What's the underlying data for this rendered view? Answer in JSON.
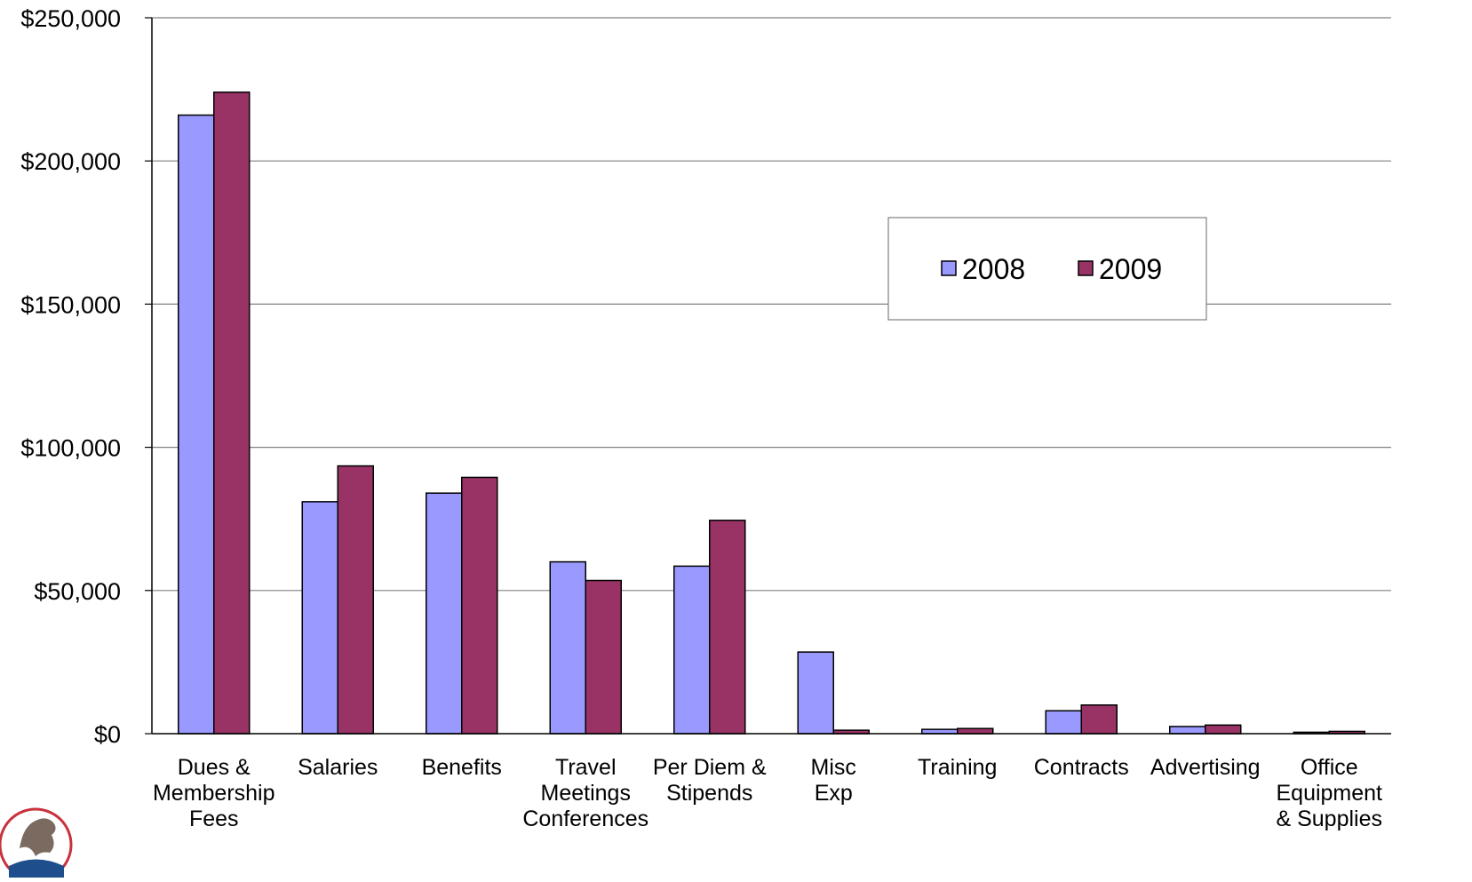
{
  "chart_data": {
    "type": "bar",
    "title": "",
    "xlabel": "",
    "ylabel": "",
    "ylim": [
      0,
      250000
    ],
    "y_ticks": [
      0,
      50000,
      100000,
      150000,
      200000,
      250000
    ],
    "y_tick_labels": [
      "$0",
      "$50,000",
      "$100,000",
      "$150,000",
      "$200,000",
      "$250,000"
    ],
    "grid": true,
    "legend_position": "upper-right",
    "categories": [
      [
        "Dues &",
        "Membership",
        "Fees"
      ],
      [
        "Salaries"
      ],
      [
        "Benefits"
      ],
      [
        "Travel",
        "Meetings",
        "Conferences"
      ],
      [
        "Per Diem &",
        "Stipends"
      ],
      [
        "Misc",
        "Exp"
      ],
      [
        "Training"
      ],
      [
        "Contracts"
      ],
      [
        "Advertising"
      ],
      [
        "Office",
        "Equipment",
        "& Supplies"
      ]
    ],
    "series": [
      {
        "name": "2008",
        "color": "#9999ff",
        "values": [
          216000,
          81000,
          84000,
          60000,
          58500,
          28500,
          1500,
          8000,
          2500,
          500
        ]
      },
      {
        "name": "2009",
        "color": "#993366",
        "values": [
          224000,
          93500,
          89500,
          53500,
          74500,
          1200,
          1800,
          10000,
          3000,
          800
        ]
      }
    ]
  }
}
